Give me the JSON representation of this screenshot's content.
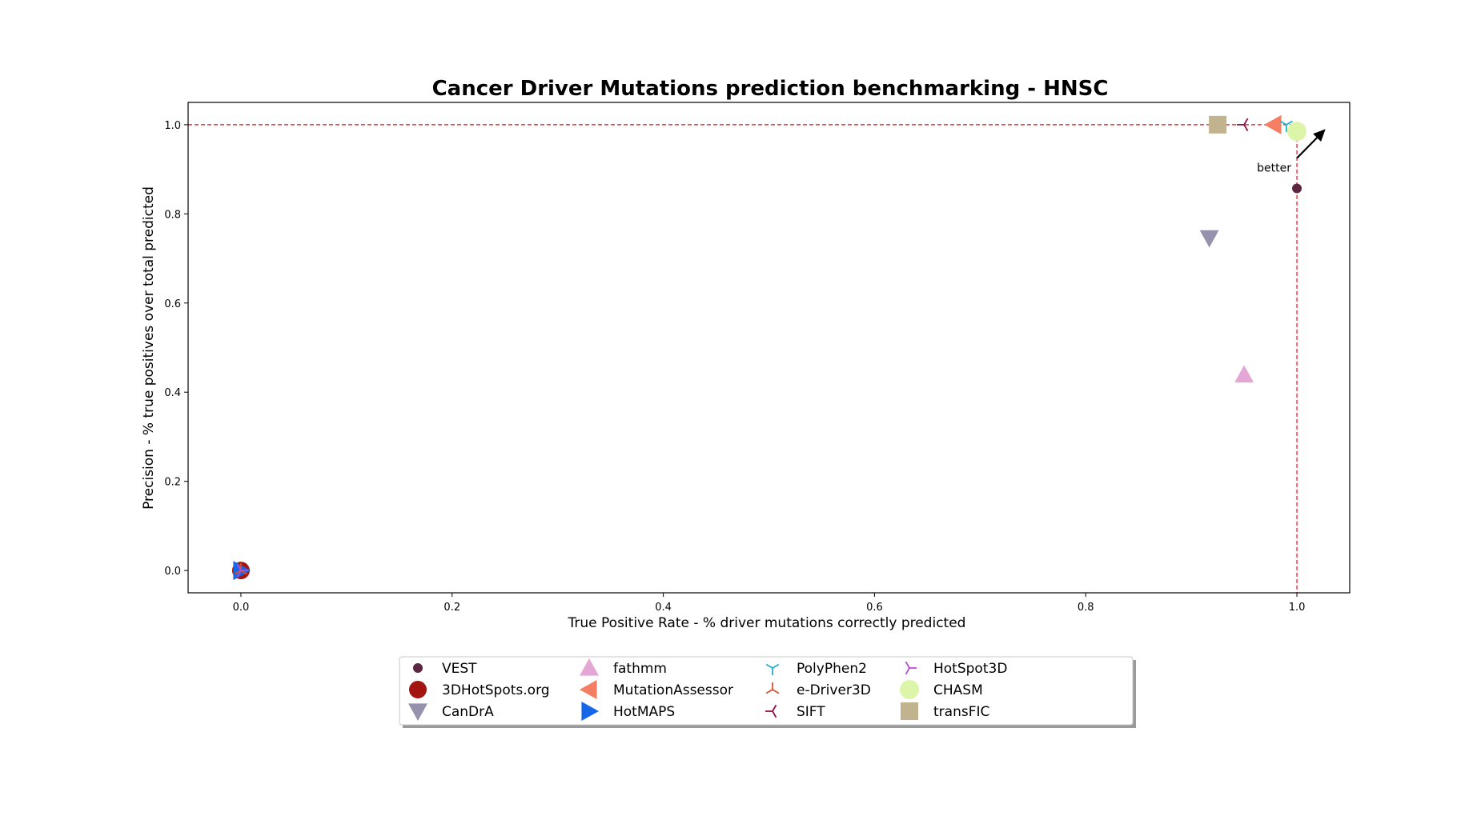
{
  "chart_data": {
    "type": "scatter",
    "title": "Cancer Driver Mutations prediction benchmarking - HNSC",
    "xlabel": "True Positive Rate - % driver mutations correctly predicted",
    "ylabel": "Precision - % true positives over total predicted",
    "xlim": [
      -0.05,
      1.05
    ],
    "ylim": [
      -0.05,
      1.05
    ],
    "xticks": [
      "0.0",
      "0.2",
      "0.4",
      "0.6",
      "0.8",
      "1.0"
    ],
    "yticks": [
      "0.0",
      "0.2",
      "0.4",
      "0.6",
      "0.8",
      "1.0"
    ],
    "grid": false,
    "legend_position": "bottom-center",
    "reference_lines": {
      "precision": 1.0,
      "tpr": 1.0,
      "color": "#e8101a",
      "style": "dashed"
    },
    "annotation": {
      "text": "better",
      "arrow_from": [
        1.0,
        0.925
      ],
      "arrow_to": [
        1.027,
        0.99
      ]
    },
    "series": [
      {
        "name": "VEST",
        "x": 1.0,
        "y": 0.857,
        "marker": "circle-small",
        "color": "#5b2640"
      },
      {
        "name": "3DHotSpots.org",
        "x": 0.0,
        "y": 0.0,
        "marker": "circle",
        "color": "#a31511"
      },
      {
        "name": "CanDrA",
        "x": 0.917,
        "y": 0.746,
        "marker": "triangle-down",
        "color": "#9691ad"
      },
      {
        "name": "fathmm",
        "x": 0.95,
        "y": 0.439,
        "marker": "triangle-up",
        "color": "#e3a6d5"
      },
      {
        "name": "MutationAssessor",
        "x": 0.978,
        "y": 1.0,
        "marker": "triangle-left",
        "color": "#f47e63"
      },
      {
        "name": "HotMAPS",
        "x": 0.0,
        "y": 0.0,
        "marker": "triangle-right",
        "color": "#1666e8"
      },
      {
        "name": "PolyPhen2",
        "x": 0.99,
        "y": 1.0,
        "marker": "tri-down",
        "color": "#1cb2cc"
      },
      {
        "name": "e-Driver3D",
        "x": 0.0,
        "y": 0.0,
        "marker": "tri-up",
        "color": "#d9502c"
      },
      {
        "name": "SIFT",
        "x": 0.95,
        "y": 1.0,
        "marker": "tri-left",
        "color": "#8e1043"
      },
      {
        "name": "HotSpot3D",
        "x": 0.0,
        "y": 0.0,
        "marker": "tri-right",
        "color": "#b64bd6"
      },
      {
        "name": "CHASM",
        "x": 1.0,
        "y": 0.985,
        "marker": "circle-large",
        "color": "#dcf5a8"
      },
      {
        "name": "transFIC",
        "x": 0.925,
        "y": 1.0,
        "marker": "square",
        "color": "#c2b38f"
      }
    ],
    "legend_order": [
      "VEST",
      "3DHotSpots.org",
      "CanDrA",
      "fathmm",
      "MutationAssessor",
      "HotMAPS",
      "PolyPhen2",
      "e-Driver3D",
      "SIFT",
      "HotSpot3D",
      "CHASM",
      "transFIC"
    ]
  }
}
